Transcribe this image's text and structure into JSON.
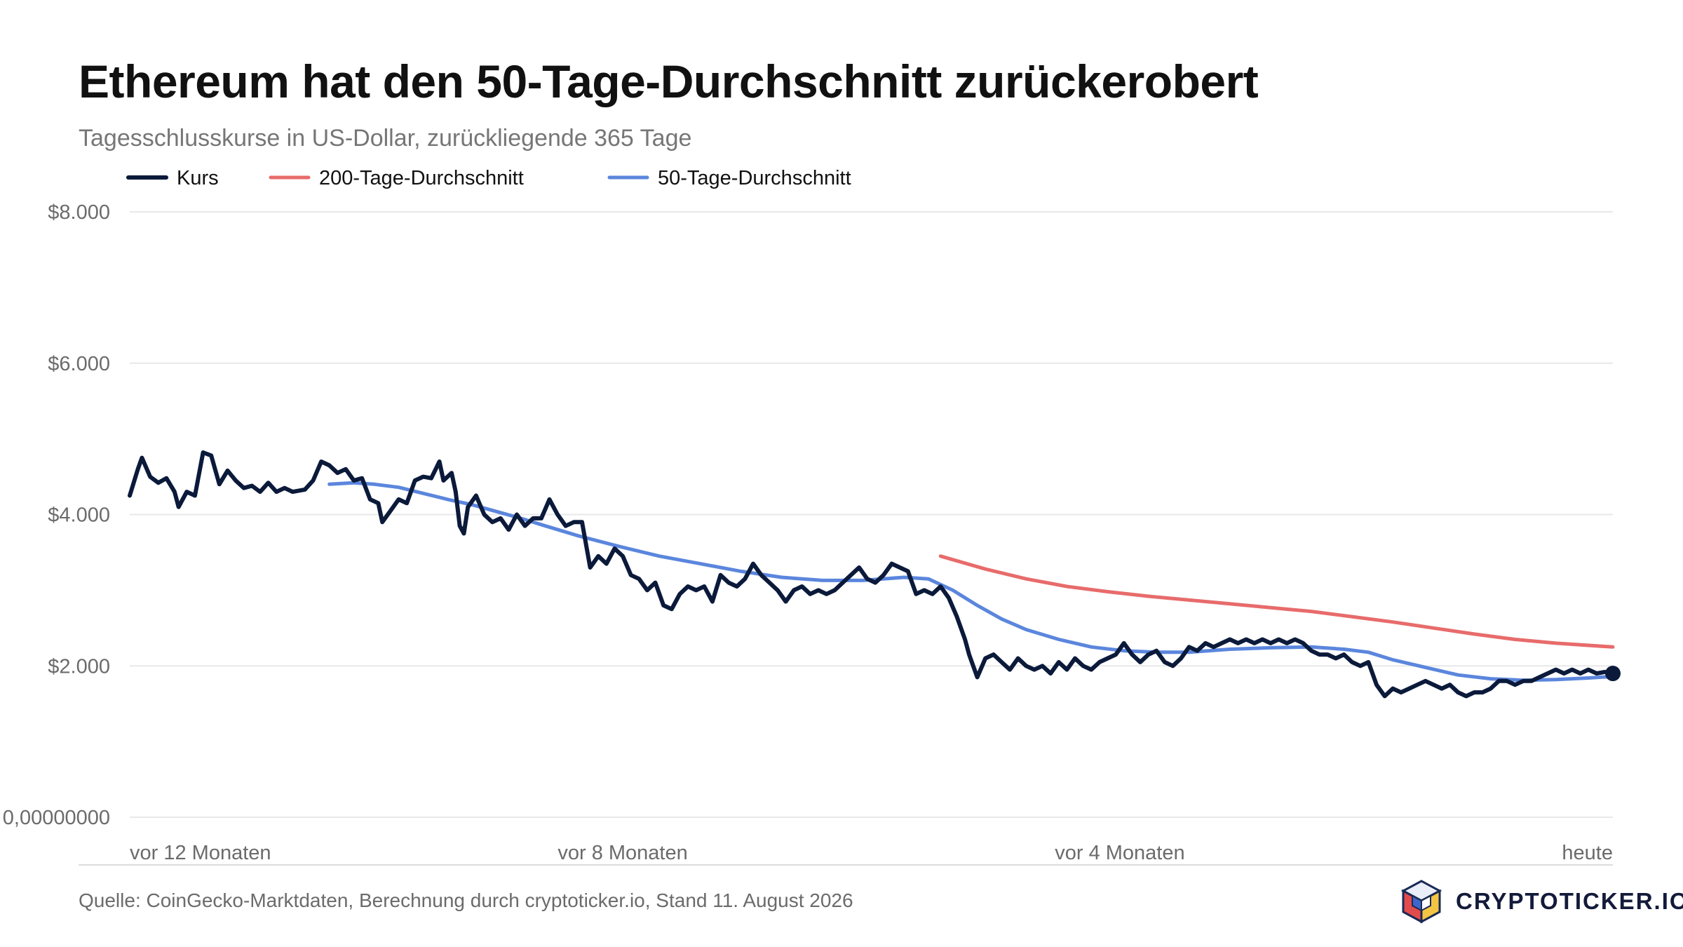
{
  "header": {
    "title": "Ethereum hat den 50-Tage-Durchschnitt zurückerobert",
    "subtitle": "Tagesschlusskurse in US-Dollar, zurückliegende 365 Tage"
  },
  "footer": {
    "source": "Quelle: CoinGecko-Marktdaten, Berechnung durch cryptoticker.io, Stand 11. August 2026",
    "brand": "CRYPTOTICKER.IO",
    "brand_icon": "cube-logo-icon"
  },
  "colors": {
    "kurs": "#0b1a3a",
    "ma200": "#e86b6b",
    "ma50": "#5b86dd",
    "grid": "#e8e8e8"
  },
  "chart_data": {
    "type": "line",
    "title": "Ethereum hat den 50-Tage-Durchschnitt zurückerobert",
    "subtitle": "Tagesschlusskurse in US-Dollar, zurückliegende 365 Tage",
    "xlabel": "",
    "ylabel": "",
    "x_unit": "Tage (0 = vor 365 Tagen, 364 = heute)",
    "xlim": [
      0,
      364
    ],
    "ylim": [
      0,
      8000
    ],
    "y_ticks": [
      0,
      2000,
      4000,
      6000,
      8000
    ],
    "y_tick_labels": [
      "0,00000000",
      "$2.000",
      "$4.000",
      "$6.000",
      "$8.000"
    ],
    "x_ticks": [
      0,
      121,
      243,
      364
    ],
    "x_tick_labels": [
      "vor 12 Monaten",
      "vor 8 Monaten",
      "vor 4 Monaten",
      "heute"
    ],
    "grid": true,
    "legend_position": "top-left",
    "series": [
      {
        "name": "Kurs",
        "color": "#0b1a3a",
        "points": [
          [
            0,
            4250
          ],
          [
            2,
            4600
          ],
          [
            3,
            4750
          ],
          [
            5,
            4500
          ],
          [
            7,
            4420
          ],
          [
            9,
            4480
          ],
          [
            11,
            4300
          ],
          [
            12,
            4100
          ],
          [
            14,
            4300
          ],
          [
            16,
            4250
          ],
          [
            18,
            4820
          ],
          [
            20,
            4780
          ],
          [
            22,
            4400
          ],
          [
            24,
            4580
          ],
          [
            26,
            4450
          ],
          [
            28,
            4350
          ],
          [
            30,
            4380
          ],
          [
            32,
            4300
          ],
          [
            34,
            4420
          ],
          [
            36,
            4300
          ],
          [
            38,
            4350
          ],
          [
            40,
            4300
          ],
          [
            43,
            4330
          ],
          [
            45,
            4450
          ],
          [
            47,
            4700
          ],
          [
            49,
            4650
          ],
          [
            51,
            4550
          ],
          [
            53,
            4600
          ],
          [
            55,
            4450
          ],
          [
            57,
            4480
          ],
          [
            59,
            4200
          ],
          [
            61,
            4150
          ],
          [
            62,
            3900
          ],
          [
            64,
            4050
          ],
          [
            66,
            4200
          ],
          [
            68,
            4150
          ],
          [
            70,
            4450
          ],
          [
            72,
            4500
          ],
          [
            74,
            4480
          ],
          [
            76,
            4700
          ],
          [
            77,
            4450
          ],
          [
            79,
            4550
          ],
          [
            80,
            4300
          ],
          [
            81,
            3850
          ],
          [
            82,
            3750
          ],
          [
            83,
            4100
          ],
          [
            85,
            4250
          ],
          [
            87,
            4000
          ],
          [
            89,
            3900
          ],
          [
            91,
            3950
          ],
          [
            93,
            3800
          ],
          [
            95,
            4000
          ],
          [
            97,
            3850
          ],
          [
            99,
            3950
          ],
          [
            101,
            3950
          ],
          [
            103,
            4200
          ],
          [
            105,
            4000
          ],
          [
            107,
            3850
          ],
          [
            109,
            3900
          ],
          [
            111,
            3900
          ],
          [
            113,
            3300
          ],
          [
            115,
            3450
          ],
          [
            117,
            3350
          ],
          [
            119,
            3550
          ],
          [
            121,
            3450
          ],
          [
            123,
            3200
          ],
          [
            125,
            3150
          ],
          [
            127,
            3000
          ],
          [
            129,
            3100
          ],
          [
            131,
            2800
          ],
          [
            133,
            2750
          ],
          [
            135,
            2950
          ],
          [
            137,
            3050
          ],
          [
            139,
            3000
          ],
          [
            141,
            3050
          ],
          [
            143,
            2850
          ],
          [
            145,
            3200
          ],
          [
            147,
            3100
          ],
          [
            149,
            3050
          ],
          [
            151,
            3150
          ],
          [
            153,
            3350
          ],
          [
            155,
            3200
          ],
          [
            157,
            3100
          ],
          [
            159,
            3000
          ],
          [
            161,
            2850
          ],
          [
            163,
            3000
          ],
          [
            165,
            3050
          ],
          [
            167,
            2950
          ],
          [
            169,
            3000
          ],
          [
            171,
            2950
          ],
          [
            173,
            3000
          ],
          [
            175,
            3100
          ],
          [
            177,
            3200
          ],
          [
            179,
            3300
          ],
          [
            181,
            3150
          ],
          [
            183,
            3100
          ],
          [
            185,
            3200
          ],
          [
            187,
            3350
          ],
          [
            189,
            3300
          ],
          [
            191,
            3250
          ],
          [
            193,
            2950
          ],
          [
            195,
            3000
          ],
          [
            197,
            2950
          ],
          [
            199,
            3050
          ],
          [
            201,
            2900
          ],
          [
            203,
            2650
          ],
          [
            205,
            2350
          ],
          [
            206,
            2150
          ],
          [
            208,
            1850
          ],
          [
            210,
            2100
          ],
          [
            212,
            2150
          ],
          [
            214,
            2050
          ],
          [
            216,
            1950
          ],
          [
            218,
            2100
          ],
          [
            220,
            2000
          ],
          [
            222,
            1950
          ],
          [
            224,
            2000
          ],
          [
            226,
            1900
          ],
          [
            228,
            2050
          ],
          [
            230,
            1950
          ],
          [
            232,
            2100
          ],
          [
            234,
            2000
          ],
          [
            236,
            1950
          ],
          [
            238,
            2050
          ],
          [
            240,
            2100
          ],
          [
            242,
            2150
          ],
          [
            244,
            2300
          ],
          [
            246,
            2150
          ],
          [
            248,
            2050
          ],
          [
            250,
            2150
          ],
          [
            252,
            2200
          ],
          [
            254,
            2050
          ],
          [
            256,
            2000
          ],
          [
            258,
            2100
          ],
          [
            260,
            2250
          ],
          [
            262,
            2200
          ],
          [
            264,
            2300
          ],
          [
            266,
            2250
          ],
          [
            268,
            2300
          ],
          [
            270,
            2350
          ],
          [
            272,
            2300
          ],
          [
            274,
            2350
          ],
          [
            276,
            2300
          ],
          [
            278,
            2350
          ],
          [
            280,
            2300
          ],
          [
            282,
            2350
          ],
          [
            284,
            2300
          ],
          [
            286,
            2350
          ],
          [
            288,
            2300
          ],
          [
            290,
            2200
          ],
          [
            292,
            2150
          ],
          [
            294,
            2150
          ],
          [
            296,
            2100
          ],
          [
            298,
            2150
          ],
          [
            300,
            2050
          ],
          [
            302,
            2000
          ],
          [
            304,
            2050
          ],
          [
            306,
            1750
          ],
          [
            308,
            1600
          ],
          [
            310,
            1700
          ],
          [
            312,
            1650
          ],
          [
            314,
            1700
          ],
          [
            316,
            1750
          ],
          [
            318,
            1800
          ],
          [
            320,
            1750
          ],
          [
            322,
            1700
          ],
          [
            324,
            1750
          ],
          [
            326,
            1650
          ],
          [
            328,
            1600
          ],
          [
            330,
            1650
          ],
          [
            332,
            1650
          ],
          [
            334,
            1700
          ],
          [
            336,
            1800
          ],
          [
            338,
            1800
          ],
          [
            340,
            1750
          ],
          [
            342,
            1800
          ],
          [
            344,
            1800
          ],
          [
            346,
            1850
          ],
          [
            348,
            1900
          ],
          [
            350,
            1950
          ],
          [
            352,
            1900
          ],
          [
            354,
            1950
          ],
          [
            356,
            1900
          ],
          [
            358,
            1950
          ],
          [
            360,
            1900
          ],
          [
            362,
            1920
          ],
          [
            364,
            1900
          ]
        ]
      },
      {
        "name": "200-Tage-Durchschnitt",
        "color": "#e86b6b",
        "points": [
          [
            199,
            3450
          ],
          [
            210,
            3280
          ],
          [
            220,
            3150
          ],
          [
            230,
            3050
          ],
          [
            240,
            2980
          ],
          [
            250,
            2920
          ],
          [
            260,
            2870
          ],
          [
            270,
            2820
          ],
          [
            280,
            2770
          ],
          [
            290,
            2720
          ],
          [
            300,
            2650
          ],
          [
            310,
            2580
          ],
          [
            320,
            2500
          ],
          [
            330,
            2420
          ],
          [
            340,
            2350
          ],
          [
            350,
            2300
          ],
          [
            364,
            2250
          ]
        ]
      },
      {
        "name": "50-Tage-Durchschnitt",
        "color": "#5b86dd",
        "points": [
          [
            49,
            4400
          ],
          [
            55,
            4420
          ],
          [
            60,
            4400
          ],
          [
            66,
            4360
          ],
          [
            72,
            4280
          ],
          [
            78,
            4200
          ],
          [
            84,
            4130
          ],
          [
            90,
            4040
          ],
          [
            96,
            3950
          ],
          [
            102,
            3850
          ],
          [
            110,
            3720
          ],
          [
            120,
            3580
          ],
          [
            130,
            3450
          ],
          [
            140,
            3350
          ],
          [
            150,
            3250
          ],
          [
            160,
            3170
          ],
          [
            170,
            3130
          ],
          [
            180,
            3130
          ],
          [
            190,
            3170
          ],
          [
            196,
            3150
          ],
          [
            202,
            3000
          ],
          [
            208,
            2800
          ],
          [
            214,
            2620
          ],
          [
            220,
            2480
          ],
          [
            228,
            2350
          ],
          [
            236,
            2250
          ],
          [
            244,
            2200
          ],
          [
            252,
            2180
          ],
          [
            260,
            2180
          ],
          [
            270,
            2220
          ],
          [
            280,
            2240
          ],
          [
            290,
            2250
          ],
          [
            298,
            2220
          ],
          [
            304,
            2180
          ],
          [
            310,
            2080
          ],
          [
            318,
            1980
          ],
          [
            326,
            1880
          ],
          [
            334,
            1830
          ],
          [
            342,
            1810
          ],
          [
            350,
            1820
          ],
          [
            358,
            1840
          ],
          [
            364,
            1860
          ]
        ]
      }
    ]
  }
}
